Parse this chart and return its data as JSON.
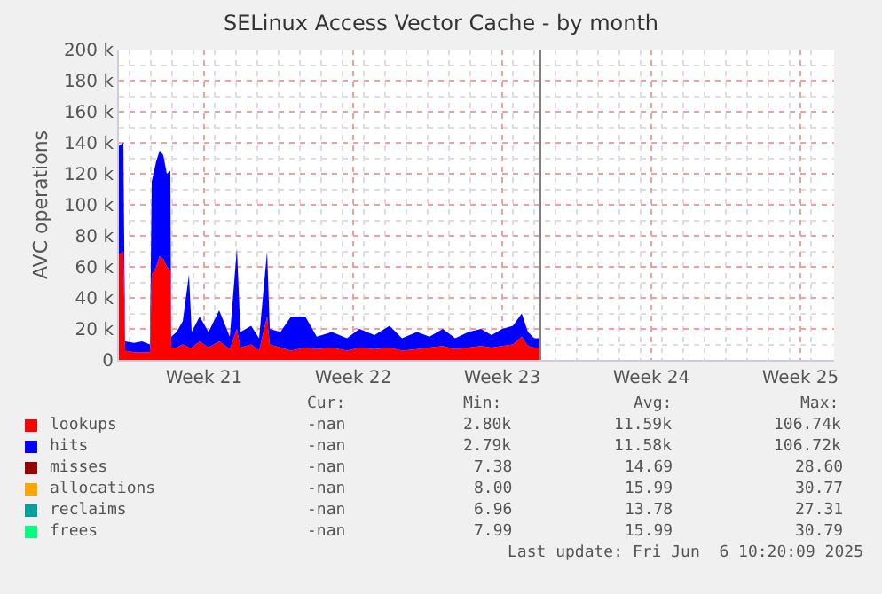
{
  "chart_data": {
    "type": "area",
    "title": "SELinux Access Vector Cache - by month",
    "ylabel": "AVC operations",
    "stacked": true,
    "grid": true,
    "legend": "bottom",
    "x": [
      "2025-05-18T12:00",
      "2025-05-18T17:00",
      "2025-05-18T19:00",
      "2025-05-19T05:00",
      "2025-05-19T14:00",
      "2025-05-19T23:00",
      "2025-05-20T01:00",
      "2025-05-20T06:00",
      "2025-05-20T10:00",
      "2025-05-20T14:00",
      "2025-05-20T18:00",
      "2025-05-20T22:00",
      "2025-05-20T23:00",
      "2025-05-21T05:00",
      "2025-05-21T12:00",
      "2025-05-21T19:00",
      "2025-05-21T22:00",
      "2025-05-22T07:00",
      "2025-05-22T17:00",
      "2025-05-23T05:00",
      "2025-05-23T17:00",
      "2025-05-24T01:00",
      "2025-05-24T05:00",
      "2025-05-24T17:00",
      "2025-05-25T02:00",
      "2025-05-25T11:00",
      "2025-05-25T14:00",
      "2025-05-26T02:00",
      "2025-05-26T14:00",
      "2025-05-27T06:00",
      "2025-05-27T19:00",
      "2025-05-28T12:00",
      "2025-05-29T05:00",
      "2025-05-29T19:00",
      "2025-05-30T12:00",
      "2025-05-31T05:00",
      "2025-05-31T19:00",
      "2025-06-01T12:00",
      "2025-06-02T02:00",
      "2025-06-02T17:00",
      "2025-06-03T07:00",
      "2025-06-03T22:00",
      "2025-06-04T12:00",
      "2025-06-05T00:00",
      "2025-06-05T12:00",
      "2025-06-06T00:00",
      "2025-06-06T10:00",
      "2025-06-06T17:00",
      "2025-06-07T00:00",
      "2025-06-07T07:00"
    ],
    "xlim": [
      "2025-05-18T12:00",
      "2025-06-21T02:00"
    ],
    "xticks": [
      {
        "value": "2025-05-22T12:00",
        "label": "Week 21"
      },
      {
        "value": "2025-05-29T12:00",
        "label": "Week 22"
      },
      {
        "value": "2025-06-05T12:00",
        "label": "Week 23"
      },
      {
        "value": "2025-06-12T12:00",
        "label": "Week 24"
      },
      {
        "value": "2025-06-19T12:00",
        "label": "Week 25"
      }
    ],
    "ylim": [
      0,
      200000
    ],
    "yticks": [
      {
        "value": 0,
        "label": "0"
      },
      {
        "value": 20000,
        "label": "20 k"
      },
      {
        "value": 40000,
        "label": "40 k"
      },
      {
        "value": 60000,
        "label": "60 k"
      },
      {
        "value": 80000,
        "label": "80 k"
      },
      {
        "value": 100000,
        "label": "100 k"
      },
      {
        "value": 120000,
        "label": "120 k"
      },
      {
        "value": 140000,
        "label": "140 k"
      },
      {
        "value": 160000,
        "label": "160 k"
      },
      {
        "value": 180000,
        "label": "180 k"
      },
      {
        "value": 200000,
        "label": "200 k"
      }
    ],
    "ref_lines": [
      {
        "axis": "x",
        "value": "2025-06-07T07:00",
        "color": "#808080"
      }
    ],
    "series": [
      {
        "name": "lookups",
        "color": "#ff0000",
        "values": [
          68000,
          70000,
          6000,
          5000,
          5000,
          5000,
          55000,
          60000,
          67000,
          65000,
          60000,
          58000,
          8000,
          8000,
          10000,
          8000,
          8000,
          12000,
          8000,
          12000,
          7000,
          20000,
          8000,
          10000,
          6000,
          28000,
          10000,
          8000,
          6000,
          8000,
          7000,
          8000,
          6000,
          8000,
          7000,
          8000,
          6000,
          7000,
          8000,
          9000,
          7000,
          8000,
          9000,
          8000,
          9000,
          10000,
          15000,
          9000,
          8000,
          8000
        ]
      },
      {
        "name": "hits",
        "color": "#0000ff",
        "values": [
          70000,
          70000,
          6000,
          6000,
          7000,
          5000,
          60000,
          68000,
          68000,
          67000,
          60000,
          64000,
          7000,
          10000,
          15000,
          47000,
          10000,
          16000,
          10000,
          20000,
          8000,
          52000,
          10000,
          12000,
          8000,
          42000,
          10000,
          10000,
          22000,
          20000,
          8000,
          10000,
          8000,
          12000,
          9000,
          14000,
          8000,
          11000,
          7000,
          11000,
          7000,
          10000,
          11000,
          8000,
          11000,
          12000,
          15000,
          9000,
          6000,
          6000
        ]
      },
      {
        "name": "misses",
        "color": "#990000",
        "values": [
          null,
          null,
          null,
          null,
          null,
          null,
          null,
          null,
          null,
          null,
          null,
          null,
          null,
          null,
          null,
          null,
          null,
          null,
          null,
          null,
          null,
          null,
          null,
          null,
          null,
          null,
          null,
          null,
          null,
          null,
          null,
          null,
          null,
          null,
          null,
          null,
          null,
          null,
          null,
          null,
          null,
          null,
          null,
          null,
          null,
          null,
          null,
          null,
          null,
          null
        ]
      },
      {
        "name": "allocations",
        "color": "#ffa500",
        "values": [
          null,
          null,
          null,
          null,
          null,
          null,
          null,
          null,
          null,
          null,
          null,
          null,
          null,
          null,
          null,
          null,
          null,
          null,
          null,
          null,
          null,
          null,
          null,
          null,
          null,
          null,
          null,
          null,
          null,
          null,
          null,
          null,
          null,
          null,
          null,
          null,
          null,
          null,
          null,
          null,
          null,
          null,
          null,
          null,
          null,
          null,
          null,
          null,
          null,
          null
        ]
      },
      {
        "name": "reclaims",
        "color": "#00a0a0",
        "values": [
          null,
          null,
          null,
          null,
          null,
          null,
          null,
          null,
          null,
          null,
          null,
          null,
          null,
          null,
          null,
          null,
          null,
          null,
          null,
          null,
          null,
          null,
          null,
          null,
          null,
          null,
          null,
          null,
          null,
          null,
          null,
          null,
          null,
          null,
          null,
          null,
          null,
          null,
          null,
          null,
          null,
          null,
          null,
          null,
          null,
          null,
          null,
          null,
          null,
          null
        ]
      },
      {
        "name": "frees",
        "color": "#00ff80",
        "values": [
          null,
          null,
          null,
          null,
          null,
          null,
          null,
          null,
          null,
          null,
          null,
          null,
          null,
          null,
          null,
          null,
          null,
          null,
          null,
          null,
          null,
          null,
          null,
          null,
          null,
          null,
          null,
          null,
          null,
          null,
          null,
          null,
          null,
          null,
          null,
          null,
          null,
          null,
          null,
          null,
          null,
          null,
          null,
          null,
          null,
          null,
          null,
          null,
          null,
          null
        ]
      }
    ],
    "annotations": [
      "Cur:",
      "Min:",
      "Avg:",
      "Max:",
      "-nan",
      "2.80k",
      "11.59k",
      "106.74k",
      "-nan",
      "2.79k",
      "11.58k",
      "106.72k",
      "-nan",
      "7.38",
      "14.69",
      "28.60",
      "-nan",
      "8.00",
      "15.99",
      "30.77",
      "-nan",
      "6.96",
      "13.78",
      "27.31",
      "-nan",
      "7.99",
      "15.99",
      "30.79",
      "Last update: Fri Jun  6 10:20:09 2025"
    ]
  }
}
